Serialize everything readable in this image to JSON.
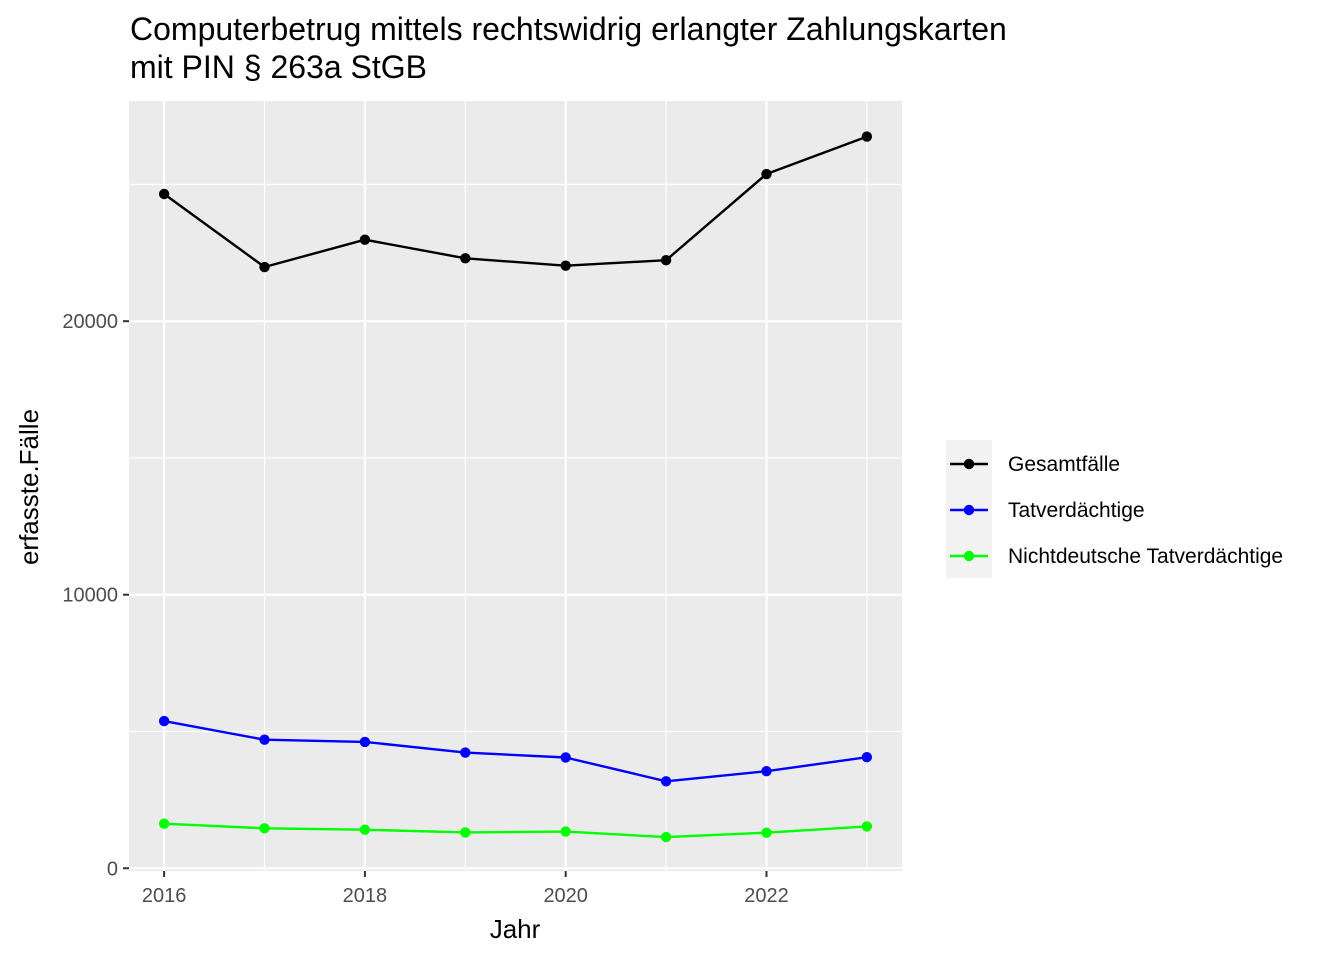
{
  "chart_data": {
    "type": "line",
    "title": "Computerbetrug mittels rechtswidrig erlangter Zahlungskarten",
    "subtitle": "mit PIN § 263a StGB",
    "xlabel": "Jahr",
    "ylabel": "erfasste.Fälle",
    "x": [
      2016,
      2017,
      2018,
      2019,
      2020,
      2021,
      2022,
      2023
    ],
    "xlim": [
      2015.65,
      2023.35
    ],
    "ylim": [
      -100,
      28050
    ],
    "x_ticks": [
      2016,
      2018,
      2020,
      2022
    ],
    "x_tick_labels": [
      "2016",
      "2018",
      "2020",
      "2022"
    ],
    "y_ticks": [
      0,
      10000,
      20000
    ],
    "y_tick_labels": [
      "0",
      "10000",
      "20000"
    ],
    "grid": true,
    "legend_position": "right",
    "series": [
      {
        "name": "Gesamtfälle",
        "color": "#000000",
        "values": [
          24650,
          21980,
          22980,
          22300,
          22030,
          22230,
          25380,
          26750
        ]
      },
      {
        "name": "Tatverdächtige",
        "color": "#0000ff",
        "values": [
          5380,
          4700,
          4620,
          4230,
          4050,
          3180,
          3550,
          4060
        ]
      },
      {
        "name": "Nichtdeutsche Tatverdächtige",
        "color": "#00ff00",
        "values": [
          1630,
          1460,
          1410,
          1310,
          1340,
          1140,
          1300,
          1530
        ]
      }
    ]
  }
}
